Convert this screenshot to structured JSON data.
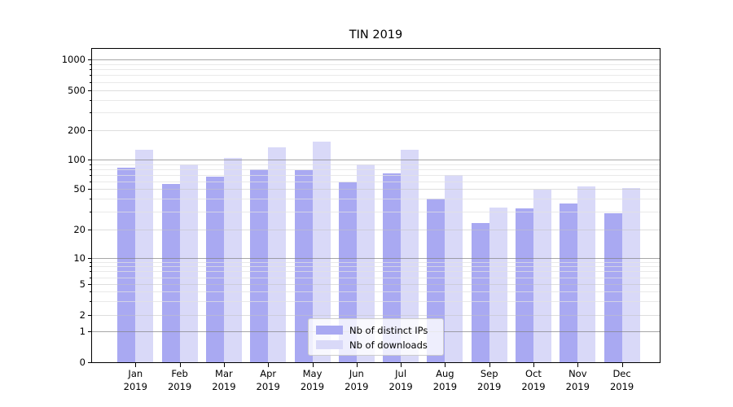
{
  "chart_data": {
    "type": "bar",
    "title": "TIN 2019",
    "categories": [
      "Jan",
      "Feb",
      "Mar",
      "Apr",
      "May",
      "Jun",
      "Jul",
      "Aug",
      "Sep",
      "Oct",
      "Nov",
      "Dec"
    ],
    "year_label": "2019",
    "series": [
      {
        "name": "Nb of distinct IPs",
        "color": "#a9a9f2",
        "values": [
          83,
          56,
          67,
          80,
          78,
          59,
          72,
          40,
          23,
          32,
          36,
          29
        ]
      },
      {
        "name": "Nb of downloads",
        "color": "#d9d9f8",
        "values": [
          127,
          90,
          104,
          133,
          152,
          90,
          127,
          69,
          33,
          49,
          53,
          51
        ]
      }
    ],
    "yscale": "symlog",
    "yticks": [
      0,
      1,
      2,
      5,
      10,
      20,
      50,
      100,
      200,
      500,
      1000
    ],
    "ylim": [
      0,
      1000
    ],
    "xlabel": "",
    "ylabel": "",
    "grid": "major+minor, drawn over bars",
    "legend_position": "lower center",
    "colors": {
      "major_gridline": "#828282",
      "minor_gridline": "#e1e1e1",
      "axis": "#000000",
      "legend_border": "#cccccc"
    }
  }
}
